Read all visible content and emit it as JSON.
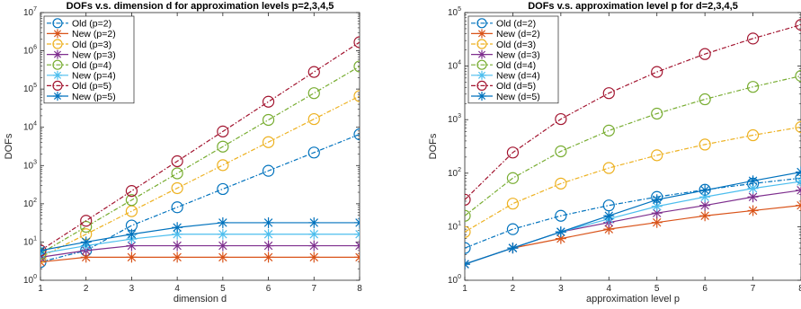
{
  "chart_data": [
    {
      "type": "line",
      "title": "DOFs v.s. dimension d for approximation levels p=2,3,4,5",
      "xlabel": "dimension d",
      "ylabel": "DOFs",
      "yscale": "log",
      "xlim": [
        1,
        8
      ],
      "ylim": [
        1,
        10000000
      ],
      "x": [
        1,
        2,
        3,
        4,
        5,
        6,
        7,
        8
      ],
      "xticks": [
        "1",
        "2",
        "3",
        "4",
        "5",
        "6",
        "7",
        "8"
      ],
      "yticks": [
        {
          "base": "10",
          "exp": "0"
        },
        {
          "base": "10",
          "exp": "1"
        },
        {
          "base": "10",
          "exp": "2"
        },
        {
          "base": "10",
          "exp": "3"
        },
        {
          "base": "10",
          "exp": "4"
        },
        {
          "base": "10",
          "exp": "5"
        },
        {
          "base": "10",
          "exp": "6"
        },
        {
          "base": "10",
          "exp": "7"
        }
      ],
      "grid": false,
      "legend": "top-left",
      "series": [
        {
          "name": "Old (p=2)",
          "values": [
            3,
            6,
            27,
            81,
            243,
            729,
            2187,
            6561
          ],
          "color": "#0072BD",
          "marker": "circle",
          "dash": true
        },
        {
          "name": "New (p=2)",
          "values": [
            3,
            4,
            4,
            4,
            4,
            4,
            4,
            4
          ],
          "color": "#D95319",
          "marker": "star",
          "dash": false
        },
        {
          "name": "Old (p=3)",
          "values": [
            4,
            16,
            64,
            256,
            1024,
            4096,
            16384,
            65536
          ],
          "color": "#EDB120",
          "marker": "circle",
          "dash": true
        },
        {
          "name": "New (p=3)",
          "values": [
            4,
            6,
            8,
            8,
            8,
            8,
            8,
            8
          ],
          "color": "#7E2F8E",
          "marker": "star",
          "dash": false
        },
        {
          "name": "Old (p=4)",
          "values": [
            5,
            25,
            125,
            625,
            3125,
            15625,
            78125,
            390625
          ],
          "color": "#77AC30",
          "marker": "circle",
          "dash": true
        },
        {
          "name": "New (p=4)",
          "values": [
            5,
            8,
            12,
            16,
            16,
            16,
            16,
            16
          ],
          "color": "#4DBEEE",
          "marker": "star",
          "dash": false
        },
        {
          "name": "Old (p=5)",
          "values": [
            6,
            36,
            216,
            1296,
            7776,
            46656,
            279936,
            1679616
          ],
          "color": "#A2142F",
          "marker": "circle",
          "dash": true
        },
        {
          "name": "New (p=5)",
          "values": [
            6,
            10,
            16,
            24,
            32,
            32,
            32,
            32
          ],
          "color": "#0072BD",
          "marker": "star",
          "dash": false
        }
      ]
    },
    {
      "type": "line",
      "title": "DOFs v.s. approximation level p for d=2,3,4,5",
      "xlabel": "approximation level p",
      "ylabel": "DOFs",
      "yscale": "log",
      "xlim": [
        1,
        8
      ],
      "ylim": [
        1,
        100000
      ],
      "x": [
        1,
        2,
        3,
        4,
        5,
        6,
        7,
        8
      ],
      "xticks": [
        "1",
        "2",
        "3",
        "4",
        "5",
        "6",
        "7",
        "8"
      ],
      "yticks": [
        {
          "base": "10",
          "exp": "0"
        },
        {
          "base": "10",
          "exp": "1"
        },
        {
          "base": "10",
          "exp": "2"
        },
        {
          "base": "10",
          "exp": "3"
        },
        {
          "base": "10",
          "exp": "4"
        },
        {
          "base": "10",
          "exp": "5"
        }
      ],
      "grid": false,
      "legend": "top-left",
      "series": [
        {
          "name": "Old (d=2)",
          "values": [
            4,
            9,
            16,
            25,
            36,
            49,
            64,
            81
          ],
          "color": "#0072BD",
          "marker": "circle",
          "dash": true
        },
        {
          "name": "New (d=2)",
          "values": [
            2,
            4,
            6,
            9,
            12,
            16,
            20,
            25
          ],
          "color": "#D95319",
          "marker": "star",
          "dash": false
        },
        {
          "name": "Old (d=3)",
          "values": [
            8,
            27,
            64,
            125,
            216,
            343,
            512,
            729
          ],
          "color": "#EDB120",
          "marker": "circle",
          "dash": true
        },
        {
          "name": "New (d=3)",
          "values": [
            2,
            4,
            8,
            12,
            18,
            25,
            36,
            48
          ],
          "color": "#7E2F8E",
          "marker": "star",
          "dash": false
        },
        {
          "name": "Old (d=4)",
          "values": [
            16,
            81,
            256,
            625,
            1296,
            2401,
            4096,
            6561
          ],
          "color": "#77AC30",
          "marker": "circle",
          "dash": true
        },
        {
          "name": "New (d=4)",
          "values": [
            2,
            4,
            8,
            14,
            24,
            36,
            52,
            70
          ],
          "color": "#4DBEEE",
          "marker": "star",
          "dash": false
        },
        {
          "name": "Old (d=5)",
          "values": [
            32,
            243,
            1024,
            3125,
            7776,
            16807,
            32768,
            59049
          ],
          "color": "#A2142F",
          "marker": "circle",
          "dash": true
        },
        {
          "name": "New (d=5)",
          "values": [
            2,
            4,
            8,
            16,
            32,
            48,
            72,
            105
          ],
          "color": "#0072BD",
          "marker": "star",
          "dash": false
        }
      ]
    }
  ]
}
